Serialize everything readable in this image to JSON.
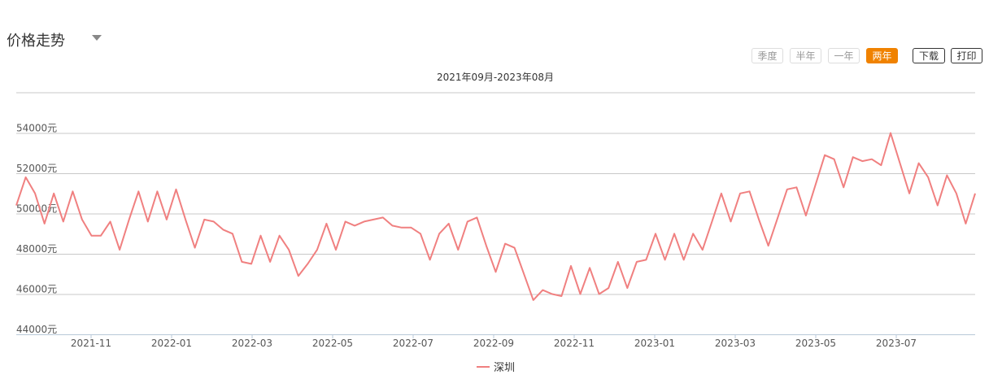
{
  "header": {
    "title": "价格走势",
    "range_buttons": [
      {
        "label": "季度",
        "active": false
      },
      {
        "label": "半年",
        "active": false
      },
      {
        "label": "一年",
        "active": false
      },
      {
        "label": "两年",
        "active": true
      }
    ],
    "download_label": "下载",
    "print_label": "打印",
    "accent_color": "#f08200"
  },
  "chart_data": {
    "type": "line",
    "subtitle": "2021年09月-2023年08月",
    "y_unit": "元",
    "ylim": [
      44000,
      55000
    ],
    "y_ticks": [
      44000,
      46000,
      48000,
      50000,
      52000,
      54000
    ],
    "x_tick_labels": [
      "2021-11",
      "2022-01",
      "2022-03",
      "2022-05",
      "2022-07",
      "2022-09",
      "2022-11",
      "2023-01",
      "2023-03",
      "2023-05",
      "2023-07"
    ],
    "grid": true,
    "legend": "bottom-center",
    "series": [
      {
        "name": "深圳",
        "color": "#f08080",
        "values": [
          50400,
          51800,
          51000,
          49500,
          51000,
          49600,
          51100,
          49700,
          48900,
          48900,
          49600,
          48200,
          49700,
          51100,
          49600,
          51100,
          49700,
          51200,
          49700,
          48300,
          49700,
          49600,
          49200,
          49000,
          47600,
          47500,
          48900,
          47600,
          48900,
          48200,
          46900,
          47500,
          48200,
          49500,
          48200,
          49600,
          49400,
          49600,
          49700,
          49800,
          49400,
          49300,
          49300,
          49000,
          47700,
          49000,
          49500,
          48200,
          49600,
          49800,
          48400,
          47100,
          48500,
          48300,
          47000,
          45700,
          46200,
          46000,
          45900,
          47400,
          46000,
          47300,
          46000,
          46300,
          47600,
          46300,
          47600,
          47700,
          49000,
          47700,
          49000,
          47700,
          49000,
          48200,
          49600,
          51000,
          49600,
          51000,
          51100,
          49700,
          48400,
          49800,
          51200,
          51300,
          49900,
          51400,
          52900,
          52700,
          51300,
          52800,
          52600,
          52700,
          52400,
          54000,
          52500,
          51000,
          52500,
          51800,
          50400,
          51900,
          51000,
          49500,
          51000
        ]
      }
    ]
  }
}
